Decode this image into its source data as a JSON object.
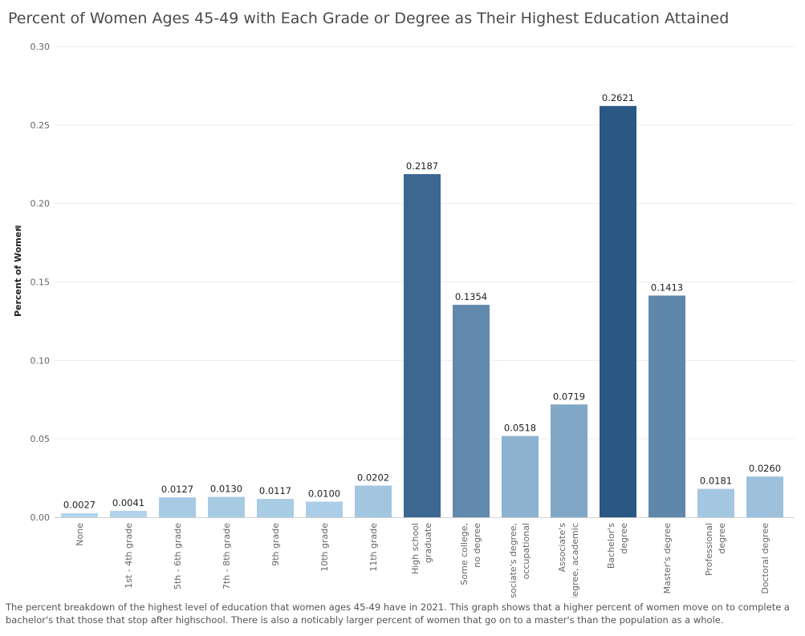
{
  "chart_data": {
    "type": "bar",
    "title": "Percent of Women Ages 45-49 with Each Grade or Degree as Their Highest Education Attained",
    "xlabel": "",
    "ylabel": "Percent of Women",
    "ylim": [
      0,
      0.3
    ],
    "yticks": [
      "0.00",
      "0.05",
      "0.10",
      "0.15",
      "0.20",
      "0.25",
      "0.30"
    ],
    "grid": true,
    "categories": [
      "None",
      "1st - 4th grade",
      "5th - 6th grade",
      "7th - 8th grade",
      "9th grade",
      "10th grade",
      "11th grade",
      "High school graduate",
      "Some college, no degree",
      "Associate's degree, occupational",
      "Associate's degree, academic",
      "Bachelor's degree",
      "Master's degree",
      "Professional degree",
      "Doctoral degree"
    ],
    "values": [
      0.0027,
      0.0041,
      0.0127,
      0.013,
      0.0117,
      0.01,
      0.0202,
      0.2187,
      0.1354,
      0.0518,
      0.0719,
      0.2621,
      0.1413,
      0.0181,
      0.026
    ],
    "value_labels": [
      "0.0027",
      "0.0041",
      "0.0127",
      "0.0130",
      "0.0117",
      "0.0100",
      "0.0202",
      "0.2187",
      "0.1354",
      "0.0518",
      "0.0719",
      "0.2621",
      "0.1413",
      "0.0181",
      "0.0260"
    ],
    "color_scale": {
      "low": "#b4d6ee",
      "high": "#2a5783"
    }
  },
  "caption": "The percent breakdown of the highest level of education that women ages 45-49 have in 2021. This graph shows that a higher percent of women move on to complete a bachelor's that those that stop after highschool. There is also a noticably larger percent of women that go on to a master's than the population as a whole.",
  "icons": {
    "axis_pin": "pin-icon"
  }
}
